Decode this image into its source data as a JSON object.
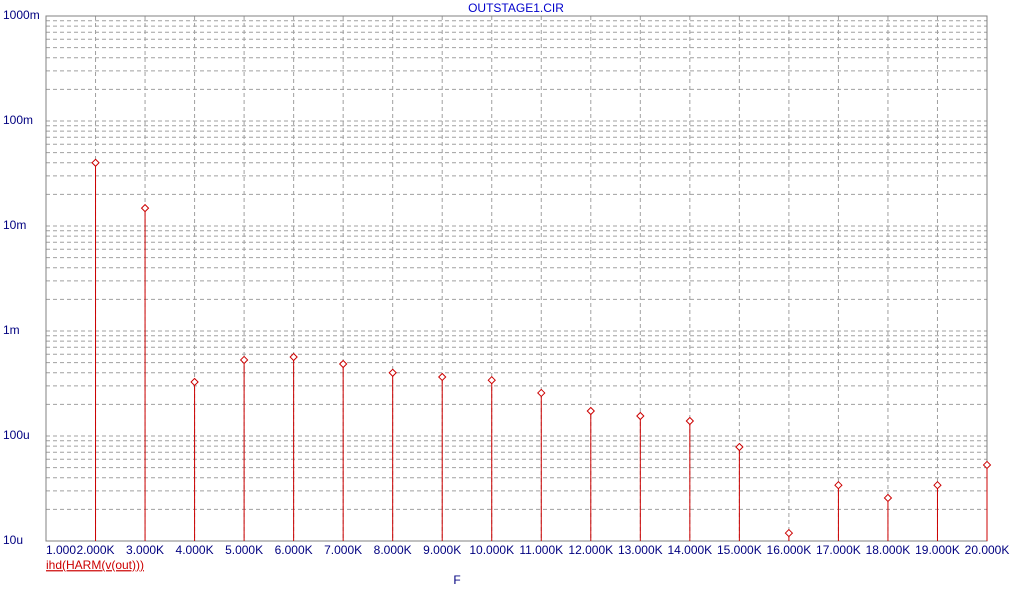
{
  "chart_data": {
    "type": "stem",
    "title": "OUTSTAGE1.CIR",
    "x_label": "F",
    "x": [
      2000,
      3000,
      4000,
      5000,
      6000,
      7000,
      8000,
      9000,
      10000,
      11000,
      12000,
      13000,
      14000,
      15000,
      16000,
      17000,
      18000,
      19000,
      20000
    ],
    "series": [
      {
        "name": "ihd(HARM(v(out)))",
        "color": "#cc0000",
        "values": [
          0.04,
          0.0148,
          0.000327,
          0.00053,
          0.000565,
          0.000485,
          0.0004,
          0.000365,
          0.00034,
          0.000257,
          0.000173,
          0.000155,
          0.000139,
          7.85e-05,
          1.19e-05,
          3.4e-05,
          2.57e-05,
          3.4e-05,
          5.3e-05
        ]
      }
    ],
    "xlim": [
      1000,
      20000
    ],
    "xticks": [
      {
        "value": 1000,
        "label": "1.000"
      },
      {
        "value": 2000,
        "label": "2.000K"
      },
      {
        "value": 3000,
        "label": "3.000K"
      },
      {
        "value": 4000,
        "label": "4.000K"
      },
      {
        "value": 5000,
        "label": "5.000K"
      },
      {
        "value": 6000,
        "label": "6.000K"
      },
      {
        "value": 7000,
        "label": "7.000K"
      },
      {
        "value": 8000,
        "label": "8.000K"
      },
      {
        "value": 9000,
        "label": "9.000K"
      },
      {
        "value": 10000,
        "label": "10.000K"
      },
      {
        "value": 11000,
        "label": "11.000K"
      },
      {
        "value": 12000,
        "label": "12.000K"
      },
      {
        "value": 13000,
        "label": "13.000K"
      },
      {
        "value": 14000,
        "label": "14.000K"
      },
      {
        "value": 15000,
        "label": "15.000K"
      },
      {
        "value": 16000,
        "label": "16.000K"
      },
      {
        "value": 17000,
        "label": "17.000K"
      },
      {
        "value": 18000,
        "label": "18.000K"
      },
      {
        "value": 19000,
        "label": "19.000K"
      },
      {
        "value": 20000,
        "label": "20.000K"
      }
    ],
    "ylim": [
      1e-05,
      1
    ],
    "yticks": [
      {
        "value": 1e-05,
        "label": "10u"
      },
      {
        "value": 0.0001,
        "label": "100u"
      },
      {
        "value": 0.001,
        "label": "1m"
      },
      {
        "value": 0.01,
        "label": "10m"
      },
      {
        "value": 0.1,
        "label": "100m"
      },
      {
        "value": 1,
        "label": "1000m"
      }
    ],
    "y_scale": "log",
    "grid": true
  }
}
